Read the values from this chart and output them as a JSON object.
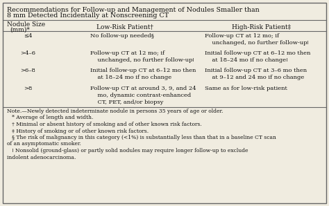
{
  "title_line1": "Recommendations for Follow-up and Management of Nodules Smaller than",
  "title_line2": "8 mm Detected Incidentally at Nonscreening CT",
  "col_headers": [
    "Nodule Size\n(mm)*",
    "Low-Risk Patient†",
    "High-Risk Patient‡"
  ],
  "rows": [
    {
      "size": "≤4",
      "low_risk": "No follow-up needed§",
      "high_risk": "Follow-up CT at 12 mo; if\n    unchanged, no further follow-upǀ"
    },
    {
      "size": ">4–6",
      "low_risk": "Follow-up CT at 12 mo; if\n    unchanged, no further follow-upǀ",
      "high_risk": "Initial follow-up CT at 6–12 mo then\n    at 18–24 mo if no changeǀ"
    },
    {
      "size": ">6–8",
      "low_risk": "Initial follow-up CT at 6–12 mo then\n    at 18–24 mo if no change",
      "high_risk": "Initial follow-up CT at 3–6 mo then\n    at 9–12 and 24 mo if no change"
    },
    {
      "size": ">8",
      "low_risk": "Follow-up CT at around 3, 9, and 24\n    mo, dynamic contrast-enhanced\n    CT, PET, and/or biopsy",
      "high_risk": "Same as for low-risk patient"
    }
  ],
  "footnote_lines": [
    "Note.—Newly detected indeterminate nodule in persons 35 years of age or older.",
    "   * Average of length and width.",
    "   † Minimal or absent history of smoking and of other known risk factors.",
    "   ‡ History of smoking or of other known risk factors.",
    "   § The risk of malignancy in this category (<1%) is substantially less than that in a baseline CT scan",
    "of an asymptomatic smoker.",
    "   ǀ Nonsolid (ground-glass) or partly solid nodules may require longer follow-up to exclude",
    "indolent adenocarcinoma."
  ],
  "bg_color": "#f0ece0",
  "border_color": "#666666",
  "text_color": "#111111",
  "title_fontsize": 6.8,
  "header_fontsize": 6.5,
  "body_fontsize": 6.0,
  "footnote_fontsize": 5.5
}
